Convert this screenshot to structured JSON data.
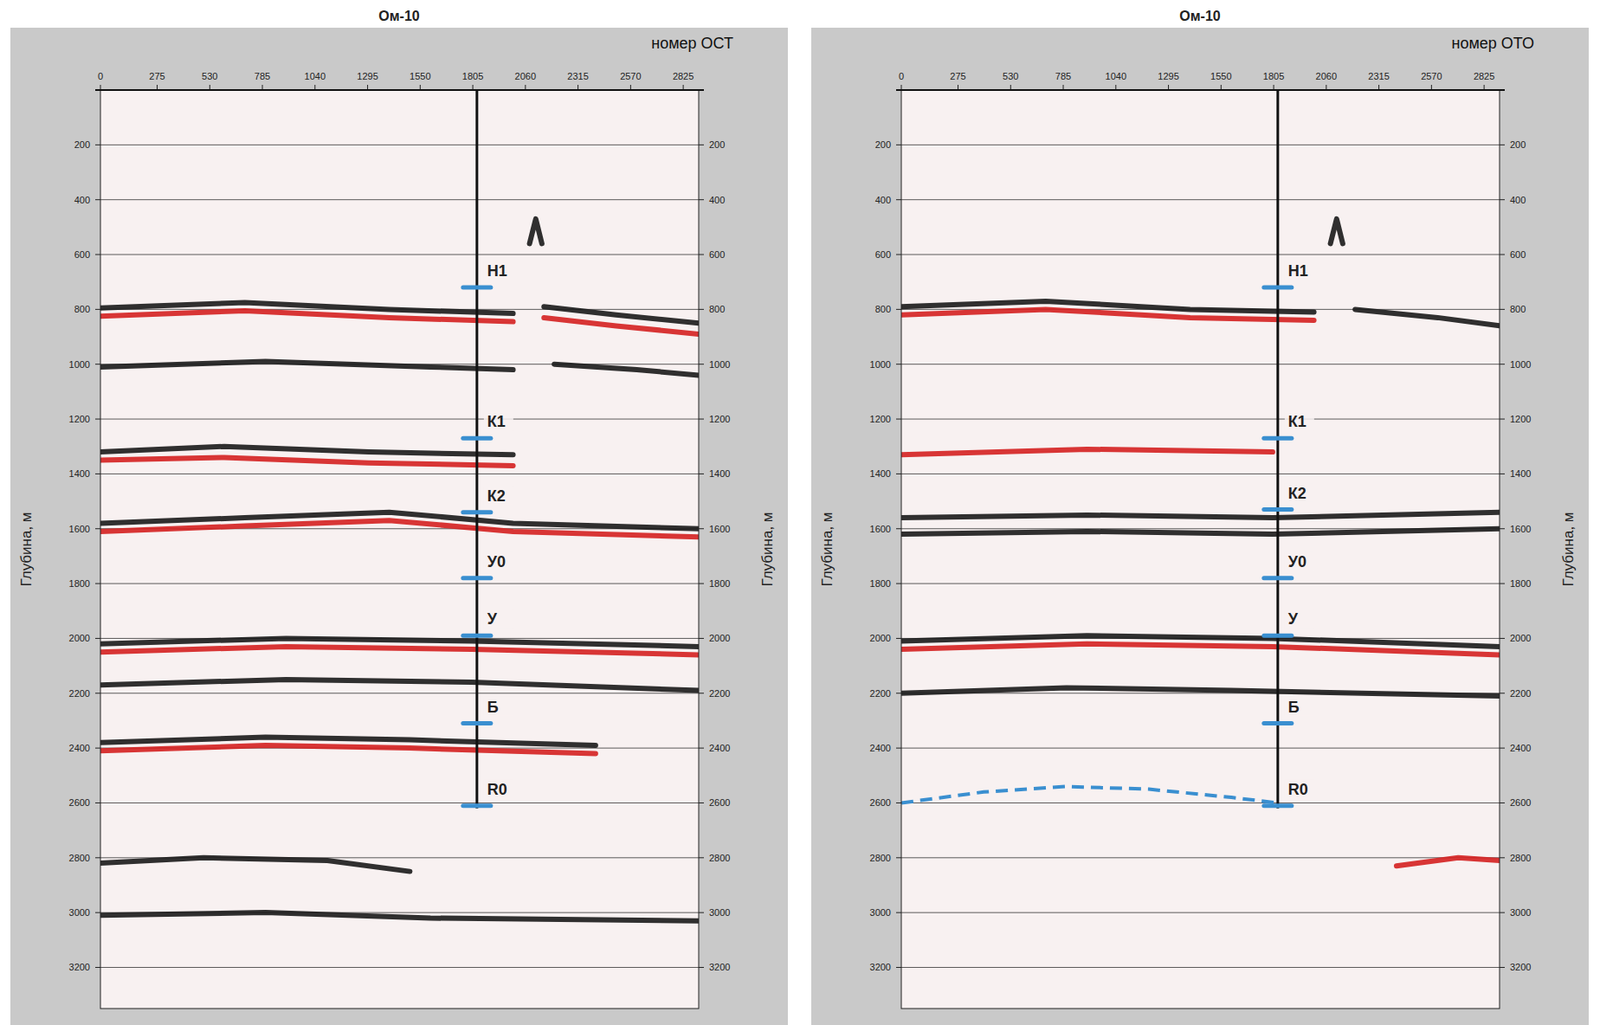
{
  "chart_data": [
    {
      "type": "seismic_section",
      "title": "Ом-10",
      "x_label": "номер ОСТ",
      "y_label": "Глубина, м",
      "xlim": [
        0,
        2900
      ],
      "ylim": [
        0,
        3350
      ],
      "xticks": [
        0,
        275,
        530,
        785,
        1040,
        1295,
        1550,
        1805,
        2060,
        2315,
        2570,
        2825
      ],
      "yticks": [
        200,
        400,
        600,
        800,
        1000,
        1200,
        1400,
        1600,
        1800,
        2000,
        2200,
        2400,
        2600,
        2800,
        3000,
        3200
      ],
      "grid": true,
      "well": {
        "x": 1825,
        "top": 0,
        "bottom": 2620
      },
      "horizons": [
        {
          "label": "Н1",
          "depth": 720
        },
        {
          "label": "К1",
          "depth": 1270
        },
        {
          "label": "К2",
          "depth": 1540
        },
        {
          "label": "У0",
          "depth": 1780
        },
        {
          "label": "У",
          "depth": 1990
        },
        {
          "label": "Б",
          "depth": 2310
        },
        {
          "label": "R0",
          "depth": 2610
        }
      ],
      "reflectors": [
        {
          "color": "#1a1a1a",
          "x": [
            2080,
            2110,
            2140
          ],
          "depth": [
            560,
            470,
            560
          ]
        },
        {
          "color": "#1a1a1a",
          "x": [
            0,
            700,
            1400,
            2000
          ],
          "depth": [
            795,
            775,
            800,
            815
          ]
        },
        {
          "color": "#d42020",
          "x": [
            0,
            700,
            1400,
            2000
          ],
          "depth": [
            825,
            805,
            830,
            845
          ]
        },
        {
          "color": "#1a1a1a",
          "x": [
            2150,
            2500,
            2900
          ],
          "depth": [
            790,
            820,
            850
          ]
        },
        {
          "color": "#d42020",
          "x": [
            2150,
            2500,
            2900
          ],
          "depth": [
            830,
            860,
            890
          ]
        },
        {
          "color": "#1a1a1a",
          "x": [
            0,
            800,
            1600,
            2000
          ],
          "depth": [
            1010,
            990,
            1010,
            1020
          ]
        },
        {
          "color": "#1a1a1a",
          "x": [
            2200,
            2600,
            2900
          ],
          "depth": [
            1000,
            1020,
            1040
          ]
        },
        {
          "color": "#1a1a1a",
          "x": [
            0,
            600,
            1300,
            2000
          ],
          "depth": [
            1320,
            1300,
            1320,
            1330
          ]
        },
        {
          "color": "#d42020",
          "x": [
            0,
            600,
            1300,
            2000
          ],
          "depth": [
            1350,
            1340,
            1360,
            1370
          ]
        },
        {
          "color": "#1a1a1a",
          "x": [
            0,
            700,
            1400,
            2000,
            2900
          ],
          "depth": [
            1580,
            1560,
            1540,
            1580,
            1600
          ]
        },
        {
          "color": "#d42020",
          "x": [
            0,
            700,
            1400,
            2000,
            2900
          ],
          "depth": [
            1610,
            1590,
            1570,
            1610,
            1630
          ]
        },
        {
          "color": "#1a1a1a",
          "x": [
            0,
            900,
            1800,
            2900
          ],
          "depth": [
            2020,
            2000,
            2010,
            2030
          ]
        },
        {
          "color": "#d42020",
          "x": [
            0,
            900,
            1800,
            2900
          ],
          "depth": [
            2050,
            2030,
            2040,
            2060
          ]
        },
        {
          "color": "#1a1a1a",
          "x": [
            0,
            900,
            1800,
            2900
          ],
          "depth": [
            2170,
            2150,
            2160,
            2190
          ]
        },
        {
          "color": "#1a1a1a",
          "x": [
            0,
            800,
            1500,
            2400
          ],
          "depth": [
            2380,
            2360,
            2370,
            2390
          ]
        },
        {
          "color": "#d42020",
          "x": [
            0,
            800,
            1500,
            2400
          ],
          "depth": [
            2410,
            2390,
            2400,
            2420
          ]
        },
        {
          "color": "#1a1a1a",
          "x": [
            0,
            500,
            1100,
            1500
          ],
          "depth": [
            2820,
            2800,
            2810,
            2850
          ]
        },
        {
          "color": "#1a1a1a",
          "x": [
            0,
            800,
            1600,
            2900
          ],
          "depth": [
            3010,
            3000,
            3020,
            3030
          ]
        }
      ]
    },
    {
      "type": "seismic_section",
      "title": "Ом-10",
      "x_label": "номер ОТО",
      "y_label": "Глубина, м",
      "xlim": [
        0,
        2900
      ],
      "ylim": [
        0,
        3350
      ],
      "xticks": [
        0,
        275,
        530,
        785,
        1040,
        1295,
        1550,
        1805,
        2060,
        2315,
        2570,
        2825
      ],
      "yticks": [
        200,
        400,
        600,
        800,
        1000,
        1200,
        1400,
        1600,
        1800,
        2000,
        2200,
        2400,
        2600,
        2800,
        3000,
        3200
      ],
      "grid": true,
      "well": {
        "x": 1825,
        "top": 0,
        "bottom": 2620
      },
      "horizons": [
        {
          "label": "Н1",
          "depth": 720
        },
        {
          "label": "К1",
          "depth": 1270
        },
        {
          "label": "К2",
          "depth": 1530
        },
        {
          "label": "У0",
          "depth": 1780
        },
        {
          "label": "У",
          "depth": 1990
        },
        {
          "label": "Б",
          "depth": 2310
        },
        {
          "label": "R0",
          "depth": 2610
        }
      ],
      "reflectors": [
        {
          "color": "#1a1a1a",
          "x": [
            2080,
            2110,
            2140
          ],
          "depth": [
            560,
            470,
            560
          ]
        },
        {
          "color": "#1a1a1a",
          "x": [
            0,
            700,
            1400,
            2000
          ],
          "depth": [
            790,
            770,
            800,
            810
          ]
        },
        {
          "color": "#d42020",
          "x": [
            0,
            700,
            1400,
            2000
          ],
          "depth": [
            820,
            800,
            830,
            840
          ]
        },
        {
          "color": "#1a1a1a",
          "x": [
            2200,
            2600,
            2900
          ],
          "depth": [
            800,
            830,
            860
          ]
        },
        {
          "color": "#d42020",
          "x": [
            0,
            900,
            1800
          ],
          "depth": [
            1330,
            1310,
            1320
          ]
        },
        {
          "color": "#1a1a1a",
          "x": [
            0,
            900,
            1800,
            2900
          ],
          "depth": [
            1560,
            1550,
            1560,
            1540
          ]
        },
        {
          "color": "#1a1a1a",
          "x": [
            0,
            900,
            1800,
            2900
          ],
          "depth": [
            1620,
            1610,
            1620,
            1600
          ]
        },
        {
          "color": "#1a1a1a",
          "x": [
            0,
            900,
            1800,
            2900
          ],
          "depth": [
            2010,
            1990,
            2000,
            2030
          ]
        },
        {
          "color": "#d42020",
          "x": [
            0,
            900,
            1800,
            2900
          ],
          "depth": [
            2040,
            2020,
            2030,
            2060
          ]
        },
        {
          "color": "#1a1a1a",
          "x": [
            0,
            800,
            1600,
            2900
          ],
          "depth": [
            2200,
            2180,
            2190,
            2210
          ]
        },
        {
          "color": "#d42020",
          "x": [
            2400,
            2700,
            2900
          ],
          "depth": [
            2830,
            2800,
            2810
          ]
        }
      ],
      "r0_trace": {
        "x": [
          0,
          400,
          800,
          1200,
          1600,
          1825
        ],
        "depth": [
          2600,
          2560,
          2540,
          2550,
          2580,
          2600
        ]
      }
    }
  ]
}
